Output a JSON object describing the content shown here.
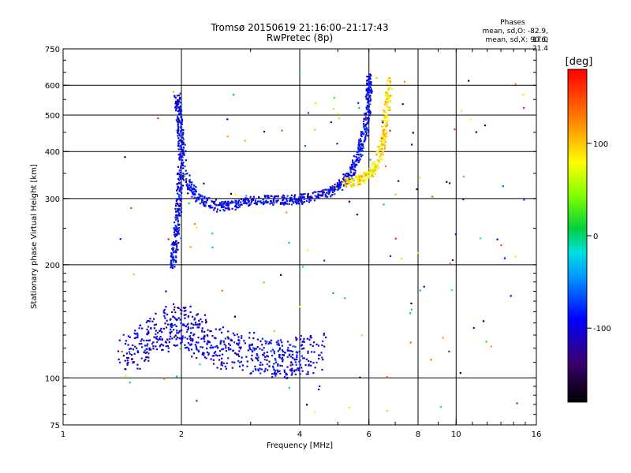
{
  "header": {
    "title_line1": "Tromsø 20150619 21:16:00–21:17:43",
    "title_line2": "RwPretec (8p)",
    "stats_title": "Phases",
    "stats_o": "mean, sd,O: -82.9, 17.0",
    "stats_x": "mean, sd,X:  90.6, 21.4"
  },
  "chart_data": {
    "type": "scatter",
    "title": "Tromsø 20150619 21:16:00–21:17:43",
    "subtitle": "RwPretec (8p)",
    "xlabel": "Frequency [MHz]",
    "ylabel": "Stationary phase Virtual Height [km]",
    "x_scale": "log",
    "y_scale": "log",
    "xlim": [
      1,
      16
    ],
    "ylim": [
      75,
      750
    ],
    "x_ticks": [
      1,
      2,
      4,
      6,
      8,
      10,
      16
    ],
    "y_ticks": [
      75,
      100,
      200,
      300,
      400,
      500,
      600,
      750
    ],
    "x_gridlines": [
      2,
      4,
      6,
      8,
      10
    ],
    "y_gridlines": [
      100,
      200,
      300,
      400,
      500,
      600
    ],
    "colorbar": {
      "label": "[deg]",
      "range": [
        -180,
        180
      ],
      "ticks": [
        -100,
        0,
        100
      ]
    },
    "traces": [
      {
        "desc": "O-mode F trace",
        "phase": -95,
        "points": [
          [
            1.9,
            200
          ],
          [
            1.93,
            230
          ],
          [
            1.96,
            270
          ],
          [
            1.98,
            320
          ],
          [
            2.0,
            400
          ],
          [
            1.98,
            480
          ],
          [
            1.95,
            560
          ],
          [
            2.05,
            340
          ],
          [
            2.2,
            300
          ],
          [
            2.5,
            285
          ],
          [
            2.8,
            290
          ],
          [
            3.2,
            298
          ],
          [
            3.6,
            297
          ],
          [
            4.0,
            298
          ],
          [
            4.5,
            305
          ],
          [
            5.0,
            320
          ],
          [
            5.4,
            350
          ],
          [
            5.7,
            400
          ],
          [
            5.9,
            470
          ],
          [
            6.0,
            560
          ],
          [
            6.0,
            630
          ]
        ]
      },
      {
        "desc": "X-mode F trace",
        "phase": 90,
        "points": [
          [
            5.2,
            330
          ],
          [
            5.6,
            335
          ],
          [
            6.0,
            345
          ],
          [
            6.3,
            370
          ],
          [
            6.5,
            420
          ],
          [
            6.6,
            480
          ],
          [
            6.7,
            550
          ],
          [
            6.8,
            630
          ]
        ]
      },
      {
        "desc": "E region echoes",
        "phase": -100,
        "points": [
          [
            1.45,
            115
          ],
          [
            1.6,
            125
          ],
          [
            1.8,
            135
          ],
          [
            2.0,
            140
          ],
          [
            2.2,
            130
          ],
          [
            2.5,
            120
          ],
          [
            2.8,
            118
          ],
          [
            3.2,
            115
          ],
          [
            3.6,
            112
          ],
          [
            4.0,
            114
          ],
          [
            4.6,
            118
          ]
        ]
      }
    ]
  }
}
